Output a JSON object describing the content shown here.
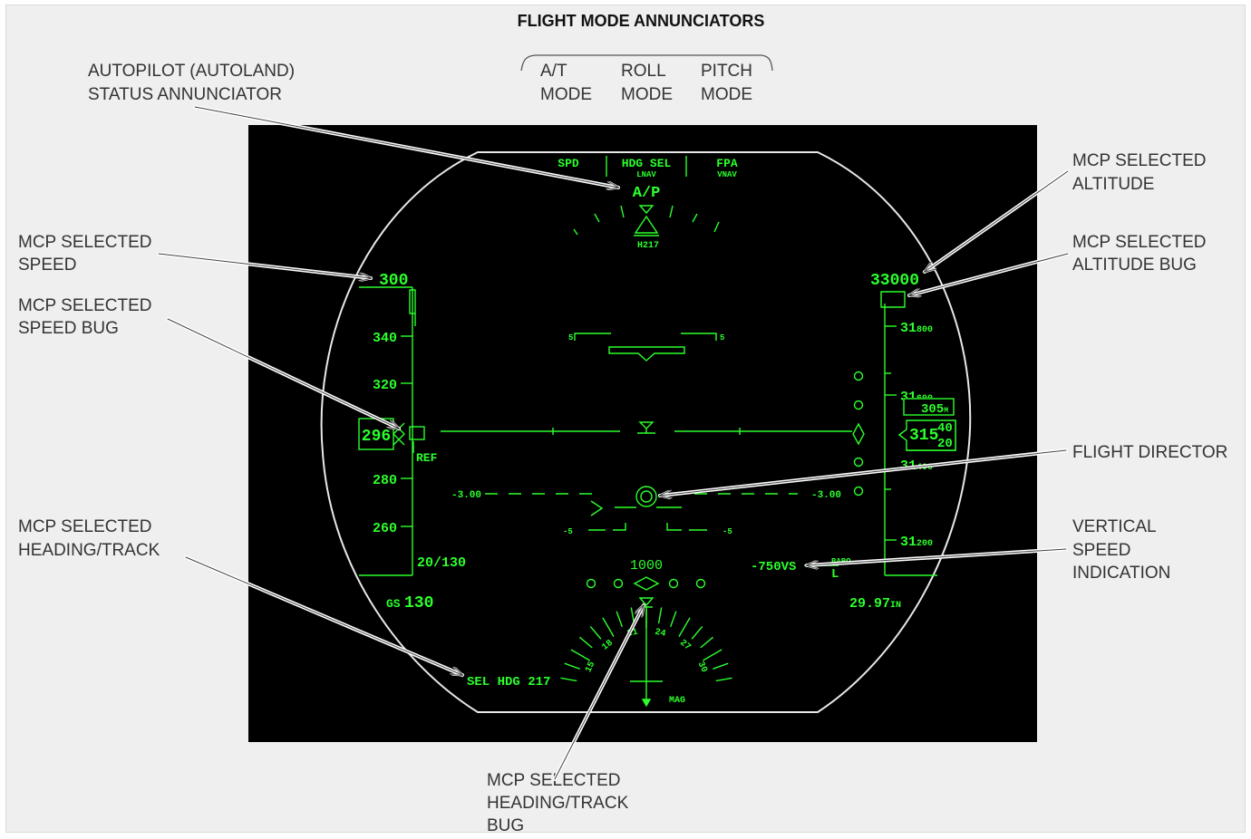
{
  "title": "FLIGHT MODE ANNUNCIATORS",
  "annunciator_columns": [
    {
      "top": "A/T",
      "bottom": "MODE"
    },
    {
      "top": "ROLL",
      "bottom": "MODE"
    },
    {
      "top": "PITCH",
      "bottom": "MODE"
    }
  ],
  "callouts": {
    "ap_status": [
      "AUTOPILOT (AUTOLAND)",
      "STATUS ANNUNCIATOR"
    ],
    "speed": [
      "MCP SELECTED",
      "SPEED"
    ],
    "speed_bug": [
      "MCP SELECTED",
      "SPEED BUG"
    ],
    "heading": [
      "MCP SELECTED",
      "HEADING/TRACK"
    ],
    "altitude": [
      "MCP SELECTED",
      "ALTITUDE"
    ],
    "altitude_bug": [
      "MCP SELECTED",
      "ALTITUDE BUG"
    ],
    "flight_director": [
      "FLIGHT DIRECTOR"
    ],
    "vertical_speed": [
      "VERTICAL",
      "SPEED",
      "INDICATION"
    ],
    "heading_bug": [
      "MCP SELECTED",
      "HEADING/TRACK",
      "BUG"
    ]
  },
  "hud": {
    "fma": {
      "at": "SPD",
      "roll": "HDG SEL",
      "roll_armed": "LNAV",
      "pitch": "FPA",
      "pitch_armed": "VNAV"
    },
    "ap_status": "A/P",
    "heading_readout": "H217",
    "selected_speed": "300",
    "speed_ticks": [
      "340",
      "320",
      "280",
      "260"
    ],
    "current_speed": "296",
    "ref_label": "REF",
    "wind": "20/130",
    "groundspeed_prefix": "GS",
    "groundspeed": "130",
    "selected_altitude": "33000",
    "alt_ticks": [
      {
        "big": "31",
        "small": "800"
      },
      {
        "big": "31",
        "small": "600"
      },
      {
        "big": "31",
        "small": "400"
      },
      {
        "big": "31",
        "small": "200"
      }
    ],
    "alt_current_big": "315",
    "alt_current_small_top": "40",
    "alt_current_small_bottom": "20",
    "alt_metric": "305",
    "alt_metric_unit": "M",
    "pitch_left": "5",
    "pitch_right": "5",
    "fpa_left": "-3.00",
    "fpa_right": "-3.00",
    "pitch_neg_left": "-5",
    "pitch_neg_right": "-5",
    "radio_alt": "1000",
    "vs": "-750VS",
    "baro": "BARO",
    "baro_setting": "29.97",
    "baro_unit": "IN",
    "sel_hdg": "SEL HDG 217",
    "compass": [
      "15",
      "18",
      "21",
      "24",
      "27",
      "30"
    ],
    "mag": "MAG"
  },
  "colors": {
    "hud_green": "#2cff2c",
    "hud_bg": "#000000",
    "frame": "#efefef"
  }
}
